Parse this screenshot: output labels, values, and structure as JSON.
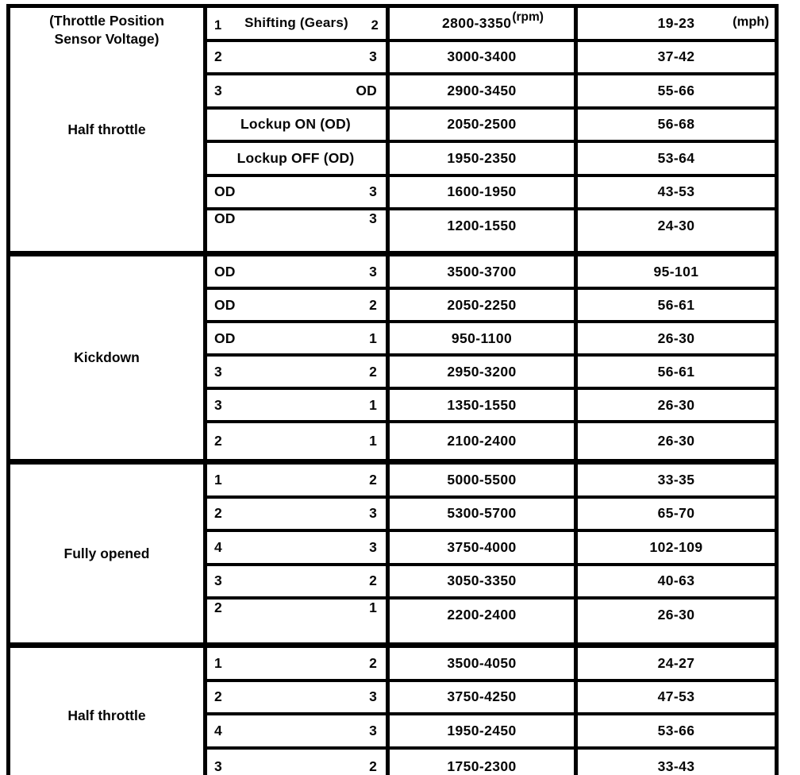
{
  "table": {
    "header": {
      "gear_title": "Shifting (Gears)",
      "rpm_unit": "(rpm)",
      "mph_unit": "(mph)"
    },
    "sections": [
      {
        "label_top": "(Throttle Position Sensor Voltage)",
        "label": "Half throttle",
        "rows": [
          {
            "from": "1",
            "to": "2",
            "rpm": "2800-3350",
            "mph": "19-23"
          },
          {
            "from": "2",
            "to": "3",
            "rpm": "3000-3400",
            "mph": "37-42"
          },
          {
            "from": "3",
            "to": "OD",
            "rpm": "2900-3450",
            "mph": "55-66"
          },
          {
            "center": "Lockup ON (OD)",
            "rpm": "2050-2500",
            "mph": "56-68"
          },
          {
            "center": "Lockup OFF (OD)",
            "rpm": "1950-2350",
            "mph": "53-64"
          },
          {
            "from": "OD",
            "to": "3",
            "rpm": "1600-1950",
            "mph": "43-53"
          },
          {
            "from": "OD",
            "to": "3",
            "rpm": "1200-1550",
            "mph": "24-30"
          }
        ]
      },
      {
        "label": "Kickdown",
        "rows": [
          {
            "from": "OD",
            "to": "3",
            "rpm": "3500-3700",
            "mph": "95-101"
          },
          {
            "from": "OD",
            "to": "2",
            "rpm": "2050-2250",
            "mph": "56-61"
          },
          {
            "from": "OD",
            "to": "1",
            "rpm": "950-1100",
            "mph": "26-30"
          },
          {
            "from": "3",
            "to": "2",
            "rpm": "2950-3200",
            "mph": "56-61"
          },
          {
            "from": "3",
            "to": "1",
            "rpm": "1350-1550",
            "mph": "26-30"
          },
          {
            "from": "2",
            "to": "1",
            "rpm": "2100-2400",
            "mph": "26-30"
          }
        ]
      },
      {
        "label": "Fully opened",
        "rows": [
          {
            "from": "1",
            "to": "2",
            "rpm": "5000-5500",
            "mph": "33-35"
          },
          {
            "from": "2",
            "to": "3",
            "rpm": "5300-5700",
            "mph": "65-70"
          },
          {
            "from": "4",
            "to": "3",
            "rpm": "3750-4000",
            "mph": "102-109"
          },
          {
            "from": "3",
            "to": "2",
            "rpm": "3050-3350",
            "mph": "40-63"
          },
          {
            "from": "2",
            "to": "1",
            "rpm": "2200-2400",
            "mph": "26-30"
          }
        ]
      },
      {
        "label": "Half throttle",
        "rows": [
          {
            "from": "1",
            "to": "2",
            "rpm": "3500-4050",
            "mph": "24-27"
          },
          {
            "from": "2",
            "to": "3",
            "rpm": "3750-4250",
            "mph": "47-53"
          },
          {
            "from": "4",
            "to": "3",
            "rpm": "1950-2450",
            "mph": "53-66"
          },
          {
            "from": "3",
            "to": "2",
            "rpm": "1750-2300",
            "mph": "33-43"
          }
        ]
      }
    ]
  }
}
